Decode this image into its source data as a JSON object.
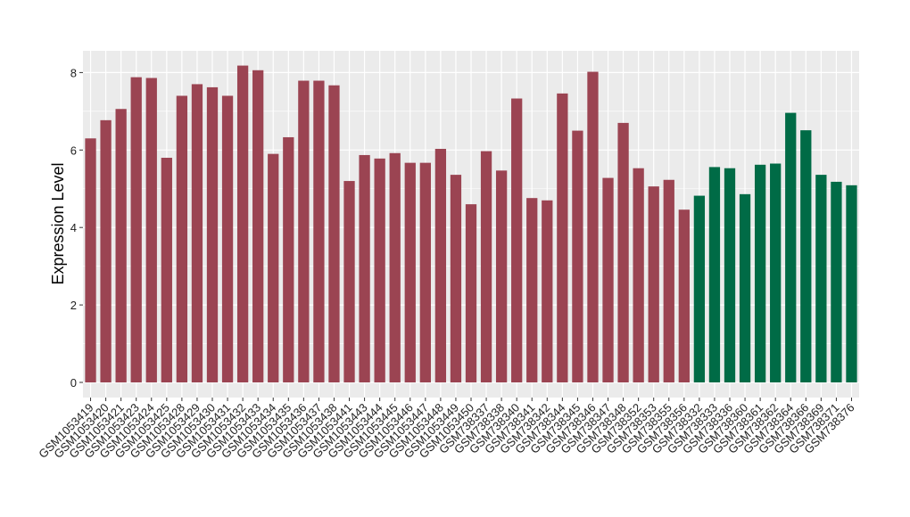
{
  "chart_data": {
    "type": "bar",
    "title": "",
    "xlabel": "",
    "ylabel": "Expression Level",
    "ylim": [
      0,
      8.5
    ],
    "yticks": [
      0,
      2,
      4,
      6,
      8
    ],
    "grid": true,
    "background_color": "#ebebeb",
    "grid_color": "#ffffff",
    "categories": [
      "GSM1053419",
      "GSM1053420",
      "GSM1053421",
      "GSM1053423",
      "GSM1053424",
      "GSM1053425",
      "GSM1053428",
      "GSM1053429",
      "GSM1053430",
      "GSM1053431",
      "GSM1053432",
      "GSM1053433",
      "GSM1053434",
      "GSM1053435",
      "GSM1053436",
      "GSM1053437",
      "GSM1053438",
      "GSM1053441",
      "GSM1053443",
      "GSM1053444",
      "GSM1053445",
      "GSM1053446",
      "GSM1053447",
      "GSM1053448",
      "GSM1053449",
      "GSM1053450",
      "GSM738337",
      "GSM738338",
      "GSM738340",
      "GSM738341",
      "GSM738342",
      "GSM738344",
      "GSM738345",
      "GSM738346",
      "GSM738347",
      "GSM738348",
      "GSM738352",
      "GSM738353",
      "GSM738355",
      "GSM738356",
      "GSM738332",
      "GSM738333",
      "GSM738336",
      "GSM738360",
      "GSM738361",
      "GSM738362",
      "GSM738364",
      "GSM738366",
      "GSM738369",
      "GSM738371",
      "GSM738376"
    ],
    "values": [
      6.3,
      6.77,
      7.06,
      7.88,
      7.86,
      5.8,
      7.4,
      7.7,
      7.62,
      7.4,
      8.18,
      8.06,
      5.9,
      6.33,
      7.79,
      7.79,
      7.67,
      5.2,
      5.87,
      5.78,
      5.92,
      5.67,
      5.67,
      6.03,
      5.36,
      4.6,
      5.97,
      5.47,
      7.33,
      4.76,
      4.7,
      7.46,
      6.5,
      8.02,
      5.28,
      6.7,
      5.53,
      5.06,
      5.23,
      4.46,
      4.82,
      5.56,
      5.53,
      4.86,
      5.62,
      5.65,
      6.96,
      6.51,
      5.36,
      5.18,
      5.09
    ],
    "bar_colors": [
      "#9b4452",
      "#9b4452",
      "#9b4452",
      "#9b4452",
      "#9b4452",
      "#9b4452",
      "#9b4452",
      "#9b4452",
      "#9b4452",
      "#9b4452",
      "#9b4452",
      "#9b4452",
      "#9b4452",
      "#9b4452",
      "#9b4452",
      "#9b4452",
      "#9b4452",
      "#9b4452",
      "#9b4452",
      "#9b4452",
      "#9b4452",
      "#9b4452",
      "#9b4452",
      "#9b4452",
      "#9b4452",
      "#9b4452",
      "#9b4452",
      "#9b4452",
      "#9b4452",
      "#9b4452",
      "#9b4452",
      "#9b4452",
      "#9b4452",
      "#9b4452",
      "#9b4452",
      "#9b4452",
      "#9b4452",
      "#9b4452",
      "#9b4452",
      "#9b4452",
      "#006b46",
      "#006b46",
      "#006b46",
      "#006b46",
      "#006b46",
      "#006b46",
      "#006b46",
      "#006b46",
      "#006b46",
      "#006b46",
      "#006b46"
    ]
  }
}
